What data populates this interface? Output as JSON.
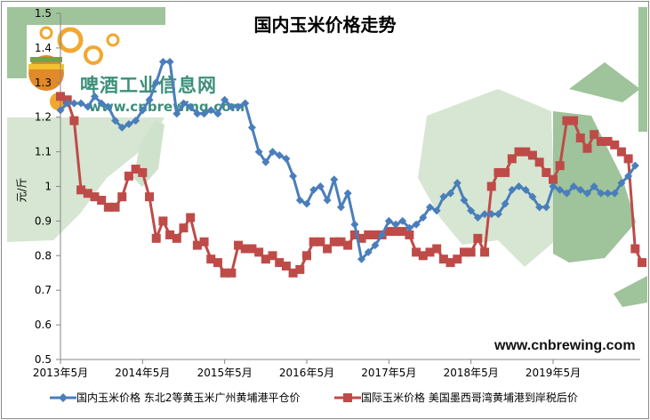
{
  "chart_data": {
    "type": "line",
    "title": "国内玉米价格走势",
    "ylabel": "元/斤",
    "xlabel": "",
    "ylim": [
      0.5,
      1.5
    ],
    "yticks": [
      "0.5",
      "0.6",
      "0.7",
      "0.8",
      "0.9",
      "1",
      "1.1",
      "1.2",
      "1.3",
      "1.4",
      "1.5"
    ],
    "xticks": [
      "2013年5月",
      "2014年5月",
      "2015年5月",
      "2016年5月",
      "2017年5月",
      "2018年5月",
      "2019年5月"
    ],
    "x_start": "2013年5月",
    "x_interval": "monthly",
    "grid": false,
    "legend_position": "bottom",
    "series": [
      {
        "name": "国内玉米价格 东北2等黄玉米广州黄埔港平仓价",
        "color": "#4a7ebb",
        "marker": "diamond",
        "values": [
          1.22,
          1.24,
          1.24,
          1.24,
          1.23,
          1.26,
          1.24,
          1.23,
          1.19,
          1.17,
          1.18,
          1.19,
          1.22,
          1.25,
          1.3,
          1.36,
          1.36,
          1.21,
          1.24,
          1.23,
          1.21,
          1.21,
          1.22,
          1.21,
          1.25,
          1.23,
          1.23,
          1.24,
          1.17,
          1.1,
          1.07,
          1.1,
          1.09,
          1.08,
          1.03,
          0.96,
          0.95,
          0.99,
          1.0,
          0.96,
          1.02,
          0.94,
          0.98,
          0.89,
          0.79,
          0.81,
          0.83,
          0.86,
          0.9,
          0.89,
          0.9,
          0.88,
          0.89,
          0.91,
          0.94,
          0.93,
          0.97,
          0.98,
          1.01,
          0.96,
          0.93,
          0.91,
          0.92,
          0.92,
          0.92,
          0.95,
          0.99,
          1.0,
          0.99,
          0.97,
          0.94,
          0.94,
          1.0,
          0.99,
          0.98,
          1.0,
          0.99,
          0.98,
          1.0,
          0.98,
          0.98,
          0.98,
          1.01,
          1.03,
          1.06
        ]
      },
      {
        "name": "国际玉米价格 美国墨西哥湾黄埔港到岸税后价",
        "color": "#be4b48",
        "marker": "square",
        "values": [
          1.26,
          1.25,
          1.19,
          0.99,
          0.98,
          0.97,
          0.96,
          0.94,
          0.94,
          0.97,
          1.03,
          1.05,
          1.04,
          0.97,
          0.85,
          0.9,
          0.86,
          0.85,
          0.88,
          0.91,
          0.83,
          0.84,
          0.79,
          0.78,
          0.75,
          0.75,
          0.83,
          0.82,
          0.82,
          0.81,
          0.79,
          0.8,
          0.78,
          0.77,
          0.75,
          0.76,
          0.8,
          0.84,
          0.84,
          0.82,
          0.84,
          0.84,
          0.83,
          0.86,
          0.85,
          0.86,
          0.86,
          0.86,
          0.87,
          0.87,
          0.87,
          0.86,
          0.81,
          0.8,
          0.81,
          0.82,
          0.79,
          0.78,
          0.79,
          0.81,
          0.81,
          0.85,
          0.81,
          1.0,
          1.04,
          1.04,
          1.08,
          1.1,
          1.1,
          1.09,
          1.07,
          1.04,
          1.02,
          1.06,
          1.19,
          1.19,
          1.14,
          1.11,
          1.15,
          1.13,
          1.13,
          1.12,
          1.1,
          1.08,
          0.82,
          0.78
        ]
      }
    ]
  },
  "watermark": {
    "logo_text": "啤酒工业信息网",
    "logo_url": "www.cnbrewing.com",
    "corner_url": "www.cnbrewing.com"
  }
}
